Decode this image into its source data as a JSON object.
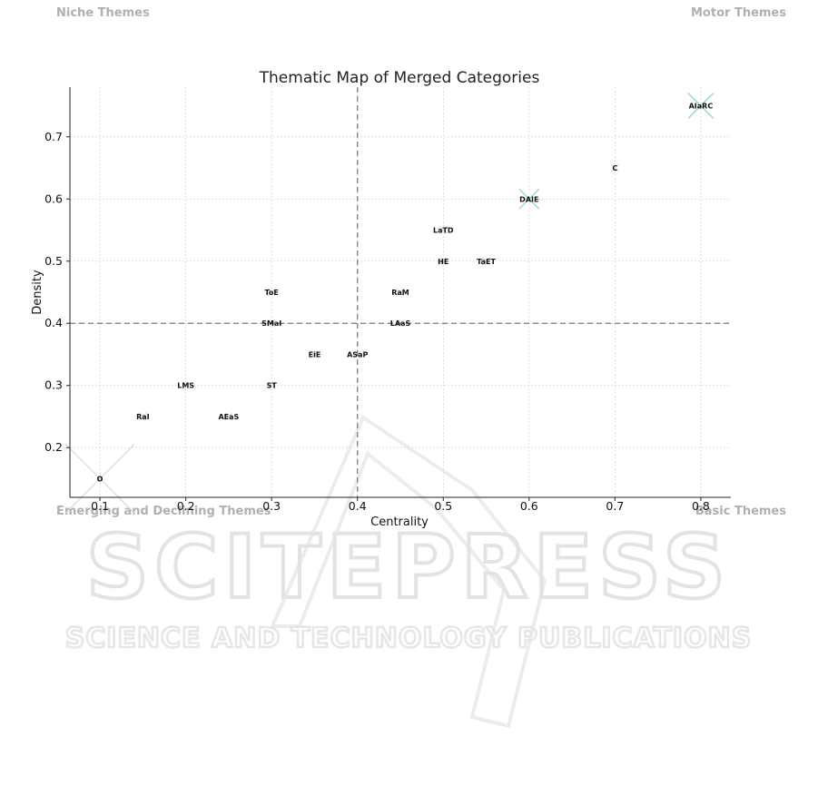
{
  "quadrants": {
    "top_left": "Niche Themes",
    "top_right": "Motor Themes",
    "bottom_left": "Emerging and Declining Themes",
    "bottom_right": "Basic Themes"
  },
  "watermark": {
    "main": "SCITEPRESS",
    "sub": "SCIENCE AND TECHNOLOGY PUBLICATIONS"
  },
  "chart_data": {
    "type": "scatter",
    "title": "Thematic Map of Merged Categories",
    "xlabel": "Centrality",
    "ylabel": "Density",
    "xlim": [
      0.065,
      0.835
    ],
    "ylim": [
      0.12,
      0.78
    ],
    "xticks": [
      0.1,
      0.2,
      0.3,
      0.4,
      0.5,
      0.6,
      0.7,
      0.8
    ],
    "yticks": [
      0.2,
      0.3,
      0.4,
      0.5,
      0.6,
      0.7
    ],
    "grid": true,
    "reference_lines": {
      "x": 0.4,
      "y": 0.4
    },
    "points": [
      {
        "label": "O",
        "x": 0.1,
        "y": 0.15
      },
      {
        "label": "RaI",
        "x": 0.15,
        "y": 0.25
      },
      {
        "label": "LMS",
        "x": 0.2,
        "y": 0.3
      },
      {
        "label": "AEaS",
        "x": 0.25,
        "y": 0.25
      },
      {
        "label": "ST",
        "x": 0.3,
        "y": 0.3
      },
      {
        "label": "SMaI",
        "x": 0.3,
        "y": 0.4
      },
      {
        "label": "ToE",
        "x": 0.3,
        "y": 0.45
      },
      {
        "label": "EiE",
        "x": 0.35,
        "y": 0.35
      },
      {
        "label": "ASaP",
        "x": 0.4,
        "y": 0.35
      },
      {
        "label": "LAaS",
        "x": 0.45,
        "y": 0.4
      },
      {
        "label": "RaM",
        "x": 0.45,
        "y": 0.45
      },
      {
        "label": "HE",
        "x": 0.5,
        "y": 0.5
      },
      {
        "label": "LaTD",
        "x": 0.5,
        "y": 0.55
      },
      {
        "label": "TaET",
        "x": 0.55,
        "y": 0.5
      },
      {
        "label": "DAIE",
        "x": 0.6,
        "y": 0.6
      },
      {
        "label": "C",
        "x": 0.7,
        "y": 0.65
      },
      {
        "label": "AIaRC",
        "x": 0.8,
        "y": 0.75
      }
    ]
  }
}
